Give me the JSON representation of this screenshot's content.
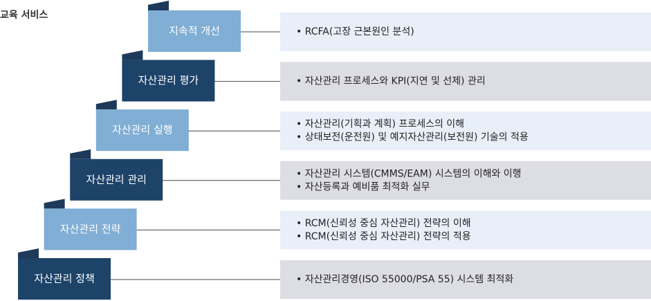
{
  "header": {
    "subtitle": "교육 서비스"
  },
  "steps": [
    {
      "label": "지속적 개선",
      "items": [
        "• RCFA(고장 근본원인 분석)"
      ]
    },
    {
      "label": "자산관리 평가",
      "items": [
        "• 자산관리 프로세스와 KPI(지연 및 선제) 관리"
      ]
    },
    {
      "label": "자산관리 실행",
      "items": [
        "• 자산관리(기획과 계획) 프로세스의 이해",
        "• 상태보전(운전원) 및 예지자산관리(보전원) 기술의 적용"
      ]
    },
    {
      "label": "자산관리 관리",
      "items": [
        "• 자산관리 시스템(CMMS/EAM) 시스템의 이해와 이행",
        "• 자산등록과 예비품 최적화 실무"
      ]
    },
    {
      "label": "자산관리 전략",
      "items": [
        "• RCM(신뢰성 중심 자산관리) 전략의 이해",
        "• RCM(신뢰성 중심 자산관리) 전략의 적용"
      ]
    },
    {
      "label": "자산관리 정책",
      "items": [
        "• 자산관리경영(ISO 55000/PSA 55) 시스템 최적화"
      ]
    }
  ]
}
